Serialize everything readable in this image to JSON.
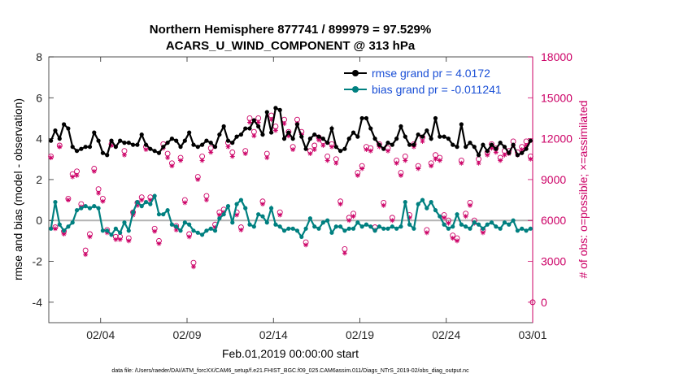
{
  "chart_data": {
    "type": "line",
    "title": "Northern Hemisphere 877741 / 899979 = 97.529%",
    "subtitle": "ACARS_U_WIND_COMPONENT @ 313 hPa",
    "xlabel": "Feb.01,2019 00:00:00 start",
    "ylabel_left": "rmse and bias (model - observation)",
    "ylabel_right": "# of obs: o=possible; ×=assimilated",
    "footer": "data file: /Users/raeder/DAI/ATM_forcXX/CAM6_setup/f.e21.FHIST_BGC.f09_025.CAM6assim.011/Diags_NTrS_2019-02/obs_diag_output.nc",
    "xlim": [
      0,
      28
    ],
    "x_ticks": [
      3,
      8,
      13,
      18,
      23,
      28
    ],
    "x_tick_labels": [
      "02/04",
      "02/09",
      "02/14",
      "02/19",
      "02/24",
      "03/01"
    ],
    "ylim_left": [
      -5,
      8
    ],
    "y_ticks_left": [
      -4,
      -2,
      0,
      2,
      4,
      6,
      8
    ],
    "y_tick_labels_left": [
      "-4",
      "-2",
      "0",
      "2",
      "4",
      "6",
      "8"
    ],
    "ylim_right": [
      -1500,
      18000
    ],
    "y_ticks_right": [
      0,
      3000,
      6000,
      9000,
      12000,
      15000,
      18000
    ],
    "y_tick_labels_right": [
      "0",
      "3000",
      "6000",
      "9000",
      "12000",
      "15000",
      "18000"
    ],
    "x_step_days": 0.25,
    "series": [
      {
        "name": "rmse",
        "legend": "rmse grand pr = 4.0172",
        "color": "#000000",
        "values": [
          3.9,
          4.4,
          4.0,
          4.7,
          4.5,
          3.6,
          3.4,
          3.5,
          3.6,
          3.6,
          4.3,
          3.9,
          3.3,
          3.2,
          3.9,
          3.6,
          3.9,
          3.8,
          3.8,
          3.7,
          3.7,
          4.2,
          3.7,
          3.5,
          3.4,
          3.3,
          3.6,
          3.8,
          4.0,
          3.9,
          3.6,
          3.9,
          4.3,
          3.7,
          3.6,
          3.7,
          3.9,
          3.8,
          3.6,
          4.2,
          4.6,
          3.9,
          3.8,
          4.1,
          4.2,
          4.5,
          4.5,
          4.9,
          4.6,
          4.2,
          5.3,
          4.3,
          5.5,
          5.4,
          4.0,
          4.3,
          4.0,
          4.7,
          4.1,
          3.5,
          4.0,
          4.2,
          4.1,
          4.0,
          3.8,
          4.5,
          3.6,
          3.4,
          3.5,
          4.0,
          4.3,
          4.1,
          5.0,
          5.0,
          4.5,
          4.0,
          3.7,
          3.5,
          3.8,
          3.7,
          4.0,
          4.6,
          4.1,
          3.7,
          3.7,
          4.2,
          4.1,
          4.4,
          4.0,
          5.0,
          4.1,
          4.1,
          4.0,
          3.7,
          3.6,
          4.7,
          3.6,
          3.8,
          3.6,
          3.2,
          3.7,
          3.4,
          3.7,
          3.5,
          3.8,
          3.6,
          3.3,
          3.7,
          3.2,
          3.3,
          3.5,
          3.9
        ]
      },
      {
        "name": "bias",
        "legend": "bias grand pr = -0.011241",
        "color": "#008080",
        "values": [
          -0.4,
          0.9,
          -0.2,
          -0.5,
          -0.3,
          -0.1,
          0.5,
          0.6,
          0.7,
          0.6,
          0.7,
          0.6,
          -0.5,
          -0.5,
          -0.7,
          -0.4,
          -0.6,
          -0.1,
          -0.5,
          0.4,
          0.9,
          0.7,
          0.9,
          0.8,
          1.2,
          0.3,
          0.3,
          0.5,
          -0.2,
          -0.3,
          -0.5,
          -0.1,
          -0.2,
          -0.5,
          -0.6,
          -0.7,
          -0.5,
          -0.4,
          -0.5,
          0.1,
          0.3,
          0.7,
          -0.1,
          0.8,
          1.0,
          0.6,
          -0.2,
          -0.3,
          0.3,
          0.2,
          -0.1,
          0.6,
          -0.2,
          -0.3,
          -0.5,
          -0.4,
          -0.4,
          -0.5,
          -0.8,
          -0.4,
          0.1,
          -0.3,
          -0.4,
          -0.1,
          0.0,
          -0.6,
          -0.3,
          -0.3,
          -0.5,
          -0.4,
          -0.4,
          -0.1,
          -0.3,
          -0.2,
          -0.3,
          -0.5,
          -0.3,
          -0.4,
          -0.4,
          -0.3,
          -0.4,
          -0.3,
          0.9,
          -0.2,
          -0.4,
          0.8,
          1.0,
          0.6,
          0.9,
          0.5,
          0.2,
          -0.2,
          -0.4,
          -0.3,
          0.3,
          -0.2,
          -0.3,
          -0.4,
          -0.1,
          -0.2,
          -0.4,
          -0.2,
          -0.1,
          -0.3,
          -0.4,
          -0.1,
          -0.2,
          0.0,
          -0.5,
          -0.4,
          -0.5,
          -0.4
        ]
      }
    ],
    "obs_possible": {
      "name": "# of obs possible",
      "marker": "o",
      "color": "#cc0066",
      "values": [
        10700,
        5500,
        11500,
        5200,
        7600,
        9400,
        9600,
        7200,
        3800,
        5000,
        9800,
        8300,
        7600,
        5300,
        11600,
        4800,
        4800,
        11100,
        4700,
        6600,
        7300,
        7700,
        11400,
        7700,
        5400,
        4500,
        11600,
        10900,
        10200,
        5600,
        10600,
        7500,
        5000,
        2900,
        9200,
        10700,
        7800,
        11300,
        5700,
        6600,
        6800,
        11700,
        11000,
        6600,
        5500,
        11100,
        13500,
        12500,
        13500,
        7400,
        10900,
        13700,
        12900,
        6600,
        13400,
        12500,
        11400,
        13400,
        12500,
        4400,
        11100,
        11500,
        12100,
        11800,
        10700,
        11600,
        10500,
        7400,
        3900,
        6200,
        6500,
        9500,
        10000,
        11400,
        11300,
        5500,
        11600,
        7300,
        11300,
        6200,
        10400,
        9500,
        10700,
        6400,
        11600,
        10000,
        12100,
        5300,
        10200,
        10800,
        10600,
        6400,
        6000,
        4900,
        4700,
        10400,
        6500,
        7300,
        6000,
        10500,
        5300,
        11000,
        11600,
        11300,
        10600,
        11100,
        11100,
        11800,
        11000,
        11400,
        11800,
        10700
      ]
    },
    "obs_assimilated": {
      "name": "# of obs assimilated",
      "marker": "*",
      "color": "#cc0066",
      "values": [
        10600,
        5400,
        11400,
        5000,
        7500,
        9200,
        9300,
        7000,
        3500,
        4800,
        9600,
        8000,
        7400,
        5100,
        11500,
        4600,
        4600,
        10800,
        4500,
        6400,
        7100,
        7500,
        11200,
        7500,
        5200,
        4300,
        11300,
        10600,
        10000,
        5300,
        10400,
        7300,
        4800,
        2600,
        9000,
        10400,
        7500,
        11000,
        5500,
        6400,
        6600,
        11400,
        10700,
        6400,
        5300,
        10900,
        13200,
        12200,
        13200,
        7200,
        10600,
        13400,
        12600,
        6400,
        13100,
        12200,
        11200,
        13100,
        12300,
        4200,
        10900,
        11200,
        11900,
        11500,
        10400,
        11400,
        10200,
        7200,
        3600,
        6000,
        6300,
        9300,
        9800,
        11200,
        11100,
        5300,
        11400,
        7100,
        11100,
        6000,
        10200,
        9300,
        10400,
        6200,
        11400,
        9800,
        11800,
        5100,
        10000,
        10500,
        10400,
        6200,
        5800,
        4700,
        4500,
        10200,
        6300,
        7100,
        5800,
        10200,
        5100,
        10800,
        11300,
        11000,
        10400,
        10800,
        10900,
        11500,
        10800,
        11200,
        11500,
        10500
      ]
    },
    "obs_right_axis_point": 0
  }
}
